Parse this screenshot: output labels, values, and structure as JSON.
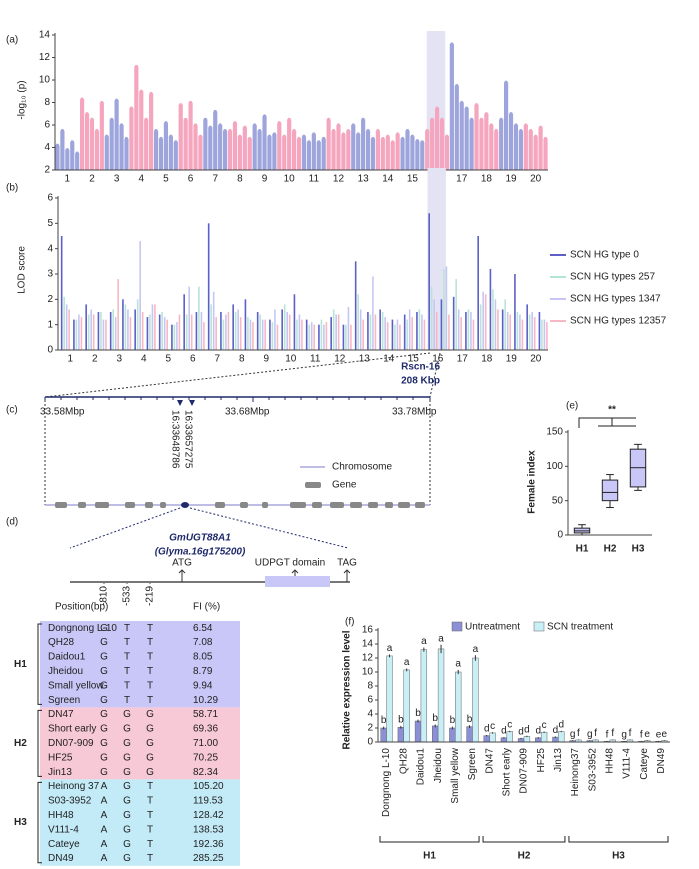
{
  "panel_labels": [
    "(a)",
    "(b)",
    "(c)",
    "(d)",
    "(e)",
    "(f)"
  ],
  "chart_data": [
    {
      "type": "manhattan",
      "y_label": "-log₁₀ (p)",
      "categories": [
        "1",
        "2",
        "3",
        "4",
        "5",
        "6",
        "7",
        "8",
        "9",
        "10",
        "11",
        "12",
        "13",
        "14",
        "15",
        "16",
        "17",
        "18",
        "19",
        "20"
      ],
      "values": [
        [
          4.2,
          5.5,
          3.8,
          4.5,
          3.5
        ],
        [
          8.3,
          7,
          6.5,
          5.5,
          8
        ],
        [
          5,
          6.5,
          8.2,
          6,
          4.8
        ],
        [
          7.5,
          11.2,
          9,
          6.5,
          8.8
        ],
        [
          5.5,
          4.8,
          6.2,
          5,
          4.5
        ],
        [
          7.8,
          6.5,
          8,
          6,
          5
        ],
        [
          6.5,
          5.8,
          7.2,
          6,
          5.5
        ],
        [
          5.5,
          6.2,
          5,
          5.8,
          4.8
        ],
        [
          6,
          5.5,
          6.8,
          5,
          5.2
        ],
        [
          6.2,
          5,
          6.5,
          5.5,
          4.8
        ],
        [
          5,
          4.5,
          5.2,
          4.5,
          4.8
        ],
        [
          6.5,
          5.5,
          6,
          5.2,
          5.5
        ],
        [
          6,
          5.2,
          6.5,
          5.5,
          4.8
        ],
        [
          5.5,
          4.8,
          5,
          4.5,
          5.2
        ],
        [
          4.8,
          5.5,
          5,
          4.6,
          4.5
        ],
        [
          5.5,
          6.5,
          7.5,
          6.5,
          5
        ],
        [
          13.2,
          9.5,
          8,
          7.5,
          6.5
        ],
        [
          7.8,
          6.5,
          7,
          6,
          5.5
        ],
        [
          6.5,
          9.8,
          7,
          6,
          5.5
        ],
        [
          6,
          5.5,
          5,
          5.8,
          4.8
        ]
      ],
      "colors": [
        "#9ea5dc",
        "#f5a5bd"
      ],
      "highlight": "16",
      "highlight_color": "#e3e3f4",
      "ylim": [
        2,
        14
      ],
      "yticks": [
        2,
        4,
        6,
        8,
        10,
        12,
        14
      ]
    },
    {
      "type": "lod",
      "y_label": "LOD score",
      "categories": [
        "1",
        "2",
        "3",
        "4",
        "5",
        "6",
        "7",
        "8",
        "9",
        "10",
        "11",
        "12",
        "13",
        "14",
        "15",
        "16",
        "17",
        "18",
        "19",
        "20"
      ],
      "series": [
        {
          "name": "SCN HG type 0",
          "color": "#5b5fc7",
          "values": [
            [
              4.5,
              1.2
            ],
            [
              1.8,
              1.5
            ],
            [
              1.5,
              2
            ],
            [
              1.6,
              1.3
            ],
            [
              1.4,
              1
            ],
            [
              2.2,
              1.5
            ],
            [
              5,
              1.5
            ],
            [
              1.8,
              2
            ],
            [
              1.5,
              1.2
            ],
            [
              1.6,
              2.2
            ],
            [
              1.2,
              1
            ],
            [
              1.3,
              1
            ],
            [
              3.5,
              1.5
            ],
            [
              1.6,
              1.2
            ],
            [
              1.4,
              1.5
            ],
            [
              5.4,
              2
            ],
            [
              2.1,
              1.5
            ],
            [
              4.5,
              3.2
            ],
            [
              1.6,
              3
            ],
            [
              1.8,
              1.5
            ]
          ]
        },
        {
          "name": "SCN HG types 257",
          "color": "#b7e4d8",
          "values": [
            [
              2.1,
              1.2
            ],
            [
              1.4,
              1.5
            ],
            [
              1.6,
              1.8
            ],
            [
              2,
              1.4
            ],
            [
              1.5,
              1
            ],
            [
              1.4,
              2.5
            ],
            [
              1.8,
              1.2
            ],
            [
              1.5,
              1.3
            ],
            [
              1.4,
              1.1
            ],
            [
              1.8,
              1.2
            ],
            [
              1,
              1.2
            ],
            [
              1.6,
              1
            ],
            [
              2.2,
              1.4
            ],
            [
              1.5,
              1
            ],
            [
              1.2,
              1.6
            ],
            [
              2.5,
              3.2
            ],
            [
              2.8,
              1.6
            ],
            [
              1.8,
              2.4
            ],
            [
              2,
              1.5
            ],
            [
              1.4,
              1.2
            ]
          ]
        },
        {
          "name": "SCN HG types 1347",
          "color": "#c7c6f2",
          "values": [
            [
              1.8,
              1.4
            ],
            [
              1.6,
              1.2
            ],
            [
              1.3,
              1.6
            ],
            [
              4.3,
              1.8
            ],
            [
              1.3,
              1.1
            ],
            [
              2.5,
              1.5
            ],
            [
              2.3,
              1.4
            ],
            [
              1.6,
              1.2
            ],
            [
              1.2,
              1.6
            ],
            [
              1.5,
              1.4
            ],
            [
              1.1,
              1
            ],
            [
              1.4,
              1.7
            ],
            [
              1.6,
              2.9
            ],
            [
              1.3,
              1.2
            ],
            [
              1.6,
              1.4
            ],
            [
              2,
              3.3
            ],
            [
              1.6,
              1.5
            ],
            [
              2.3,
              2
            ],
            [
              1.5,
              1.4
            ],
            [
              1.5,
              1.2
            ]
          ]
        },
        {
          "name": "SCN HG types 12357",
          "color": "#f6b8c4",
          "values": [
            [
              1.6,
              1.3
            ],
            [
              1.4,
              1.2
            ],
            [
              2.8,
              1.3
            ],
            [
              1.5,
              1.8
            ],
            [
              1.2,
              1.4
            ],
            [
              1.4,
              1.1
            ],
            [
              1.3,
              1.5
            ],
            [
              1.3,
              1.1
            ],
            [
              1.2,
              1
            ],
            [
              1.4,
              1.2
            ],
            [
              1,
              1.1
            ],
            [
              1.4,
              1
            ],
            [
              1.2,
              1.4
            ],
            [
              1.1,
              1
            ],
            [
              1.3,
              1.2
            ],
            [
              1.5,
              1.4
            ],
            [
              1.3,
              1.2
            ],
            [
              2.2,
              1.6
            ],
            [
              1.4,
              1.2
            ],
            [
              1.3,
              1.1
            ]
          ]
        }
      ],
      "highlight": "16",
      "highlight_color": "#e3e3f4",
      "annotations": [
        "Rscn-16",
        "208 Kbp"
      ],
      "ylim": [
        0,
        6
      ],
      "yticks": [
        0,
        1,
        2,
        3,
        4,
        5,
        6
      ]
    },
    {
      "type": "box",
      "y_label": "Female index",
      "color": "#c9c7f7",
      "categories": [
        "H1",
        "H2",
        "H3"
      ],
      "boxes": [
        {
          "min": 0,
          "q1": 3,
          "median": 6,
          "q3": 10,
          "max": 15
        },
        {
          "min": 40,
          "q1": 50,
          "median": 62,
          "q3": 80,
          "max": 88
        },
        {
          "min": 65,
          "q1": 70,
          "median": 98,
          "q3": 125,
          "max": 132
        }
      ],
      "significance": "**",
      "ylim": [
        0,
        150
      ],
      "yticks": [
        0,
        50,
        100,
        150
      ]
    },
    {
      "type": "grouped_bar",
      "y_label": "Relative expression level",
      "categories": [
        "Dongnong L-10",
        "QH28",
        "Daidou1",
        "Jheidou",
        "Small yellow",
        "Sgreen",
        "DN47",
        "Short early",
        "DN07-909",
        "HF25",
        "Jin13",
        "Heinong37",
        "S03-3952",
        "HH48",
        "V111-4",
        "Cateye",
        "DN49"
      ],
      "group_labels": [
        "H1",
        "H2",
        "H3"
      ],
      "series": [
        {
          "name": "Untreatment",
          "color": "#8a8fd6",
          "values": [
            2,
            2.1,
            3,
            2.3,
            2,
            2.2,
            0.9,
            0.6,
            0.5,
            0.6,
            0.7,
            0.2,
            0.2,
            0.1,
            0.1,
            0.1,
            0.1
          ],
          "errors": [
            0.2,
            0.2,
            0.2,
            0.2,
            0.2,
            0.2,
            0.1,
            0.1,
            0.1,
            0.1,
            0.1,
            0.05,
            0.05,
            0.05,
            0.05,
            0.05,
            0.05
          ],
          "letters": [
            "b",
            "b",
            "b",
            "b",
            "b",
            "b",
            "d",
            "d",
            "d",
            "d",
            "d",
            "g",
            "g",
            "f",
            "g",
            "f",
            "e"
          ]
        },
        {
          "name": "SCN treatment",
          "color": "#c8eef6",
          "values": [
            12.3,
            10.3,
            13.2,
            13.3,
            10,
            12,
            1.3,
            1.5,
            0.8,
            1.4,
            1.5,
            0.3,
            0.3,
            0.3,
            0.3,
            0.2,
            0.2
          ],
          "errors": [
            0.2,
            0.2,
            0.3,
            0.6,
            0.3,
            0.4,
            0.1,
            0.1,
            0.1,
            0.1,
            0.1,
            0.05,
            0.05,
            0.05,
            0.05,
            0.05,
            0.05
          ],
          "letters": [
            "a",
            "a",
            "a",
            "a",
            "a",
            "a",
            "c",
            "c",
            "d",
            "c",
            "d",
            "f",
            "f",
            "f",
            "f",
            "e",
            "e"
          ]
        }
      ],
      "ylim": [
        0,
        16
      ],
      "yticks": [
        0,
        2,
        4,
        6,
        8,
        10,
        12,
        14,
        16
      ]
    }
  ],
  "region": {
    "start": "33.58Mbp",
    "mid": "33.68Mbp",
    "end": "33.78Mbp",
    "snps": [
      "16:33648786",
      "16:33657275"
    ],
    "legend": [
      "Chromosome",
      "Gene"
    ]
  },
  "gene": {
    "name": "GmUGT88A1",
    "id": "(Glyma.16g175200)",
    "start": "ATG",
    "domain": "UDPGT domain",
    "stop": "TAG"
  },
  "haplotypes": {
    "header": [
      "Position(bp)",
      "-810",
      "-533",
      "-219",
      "FI (%)"
    ],
    "colors": [
      "#c9c7f7",
      "#f7c8d5",
      "#c2eaf7"
    ],
    "groups": [
      {
        "name": "H1",
        "rows": [
          [
            "Dongnong L-10",
            "G",
            "T",
            "T",
            "6.54"
          ],
          [
            "QH28",
            "G",
            "T",
            "T",
            "7.08"
          ],
          [
            "Daidou1",
            "G",
            "T",
            "T",
            "8.05"
          ],
          [
            "Jheidou",
            "G",
            "T",
            "T",
            "8.79"
          ],
          [
            "Small yellow",
            "G",
            "T",
            "T",
            "9.94"
          ],
          [
            "Sgreen",
            "G",
            "T",
            "T",
            "10.29"
          ]
        ]
      },
      {
        "name": "H2",
        "rows": [
          [
            "DN47",
            "G",
            "G",
            "G",
            "58.71"
          ],
          [
            "Short early",
            "G",
            "G",
            "G",
            "69.36"
          ],
          [
            "DN07-909",
            "G",
            "G",
            "G",
            "71.00"
          ],
          [
            "HF25",
            "G",
            "G",
            "G",
            "70.25"
          ],
          [
            "Jin13",
            "G",
            "G",
            "G",
            "82.34"
          ]
        ]
      },
      {
        "name": "H3",
        "rows": [
          [
            "Heinong 37",
            "A",
            "G",
            "T",
            "105.20"
          ],
          [
            "S03-3952",
            "A",
            "G",
            "T",
            "119.53"
          ],
          [
            "HH48",
            "A",
            "G",
            "T",
            "128.42"
          ],
          [
            "V111-4",
            "A",
            "G",
            "T",
            "138.53"
          ],
          [
            "Cateye",
            "A",
            "G",
            "T",
            "192.36"
          ],
          [
            "DN49",
            "A",
            "G",
            "T",
            "285.25"
          ]
        ]
      }
    ]
  }
}
